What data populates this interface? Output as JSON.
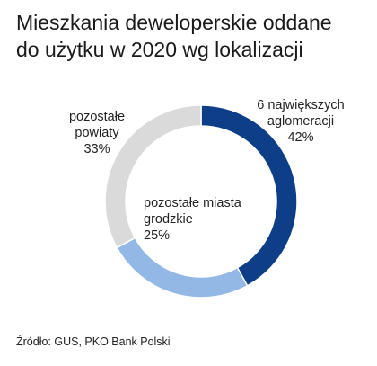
{
  "title_line1": "Mieszkania deweloperskie oddane",
  "title_line2": "do użytku w 2020 wg lokalizacji",
  "source": "Źródło: GUS,  PKO Bank Polski",
  "chart_data": {
    "type": "pie",
    "variant": "donut",
    "title": "Mieszkania deweloperskie oddane do użytku w 2020 wg lokalizacji",
    "slices": [
      {
        "label_lines": [
          "6 największych",
          "aglomeracji"
        ],
        "value": 42,
        "value_text": "42%",
        "color": "#0d3e87"
      },
      {
        "label_lines": [
          "pozostałe miasta",
          "grodzkie"
        ],
        "value": 25,
        "value_text": "25%",
        "color": "#93b8e6"
      },
      {
        "label_lines": [
          "pozostałe",
          "powiaty"
        ],
        "value": 33,
        "value_text": "33%",
        "color": "#dadada"
      }
    ],
    "start_angle_deg": 0,
    "direction": "clockwise",
    "legend": "none"
  }
}
